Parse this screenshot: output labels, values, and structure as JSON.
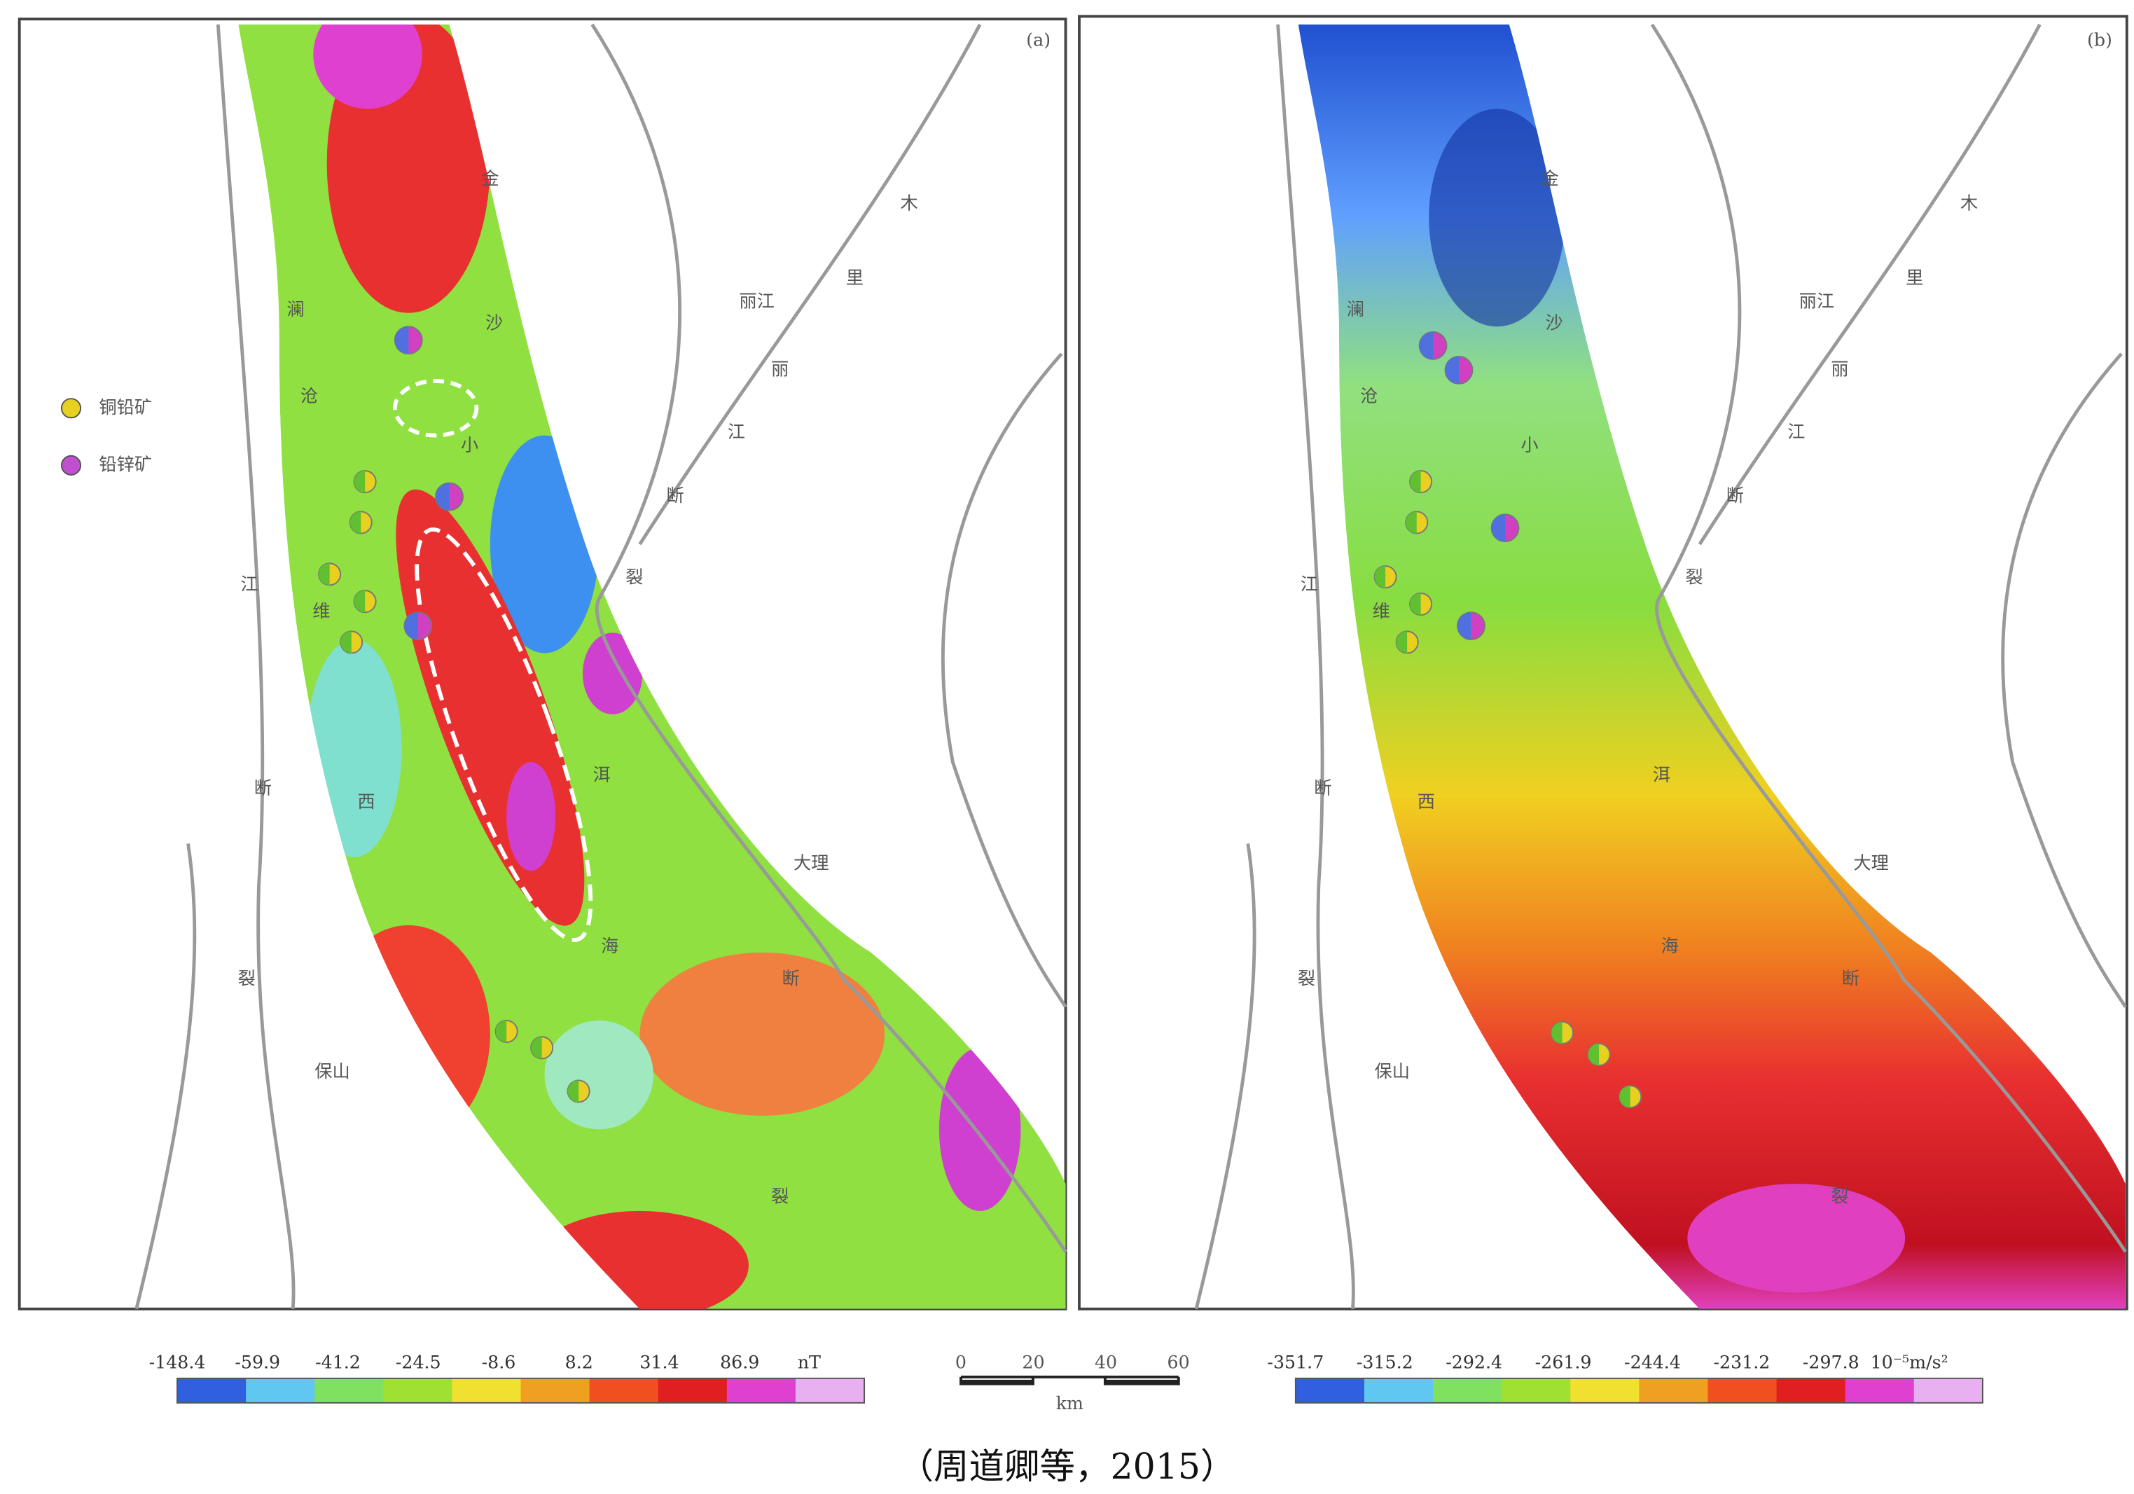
{
  "panels": [
    {
      "label": "(a)",
      "places": [
        "金",
        "沙",
        "丽江",
        "木",
        "里",
        "丽",
        "江",
        "断",
        "裂",
        "澜",
        "沧",
        "江",
        "断",
        "裂",
        "小",
        "维",
        "西",
        "大理",
        "保山",
        "洱",
        "海",
        "断",
        "裂"
      ],
      "legend": [
        "铜铅矿",
        "铅锌矿"
      ]
    },
    {
      "label": "(b)",
      "places": [
        "金",
        "沙",
        "丽江",
        "木",
        "里",
        "丽",
        "江",
        "断",
        "裂",
        "澜",
        "沧",
        "江",
        "断",
        "裂",
        "小",
        "维",
        "西",
        "大理",
        "保山",
        "洱",
        "海",
        "断",
        "裂"
      ]
    }
  ],
  "colorbars": [
    {
      "ticks": [
        "-148.4",
        "-59.9",
        "-41.2",
        "-24.5",
        "-8.6",
        "8.2",
        "31.4",
        "86.9"
      ],
      "unit": "nT"
    },
    {
      "ticks": [
        "-351.7",
        "-315.2",
        "-292.4",
        "-261.9",
        "-244.4",
        "-231.2",
        "-297.8"
      ],
      "unit": "10⁻⁵m/s²"
    }
  ],
  "scale_bar": {
    "ticks": [
      "0",
      "20",
      "40",
      "60"
    ],
    "unit": "km"
  },
  "caption": "（周道卿等，2015）"
}
